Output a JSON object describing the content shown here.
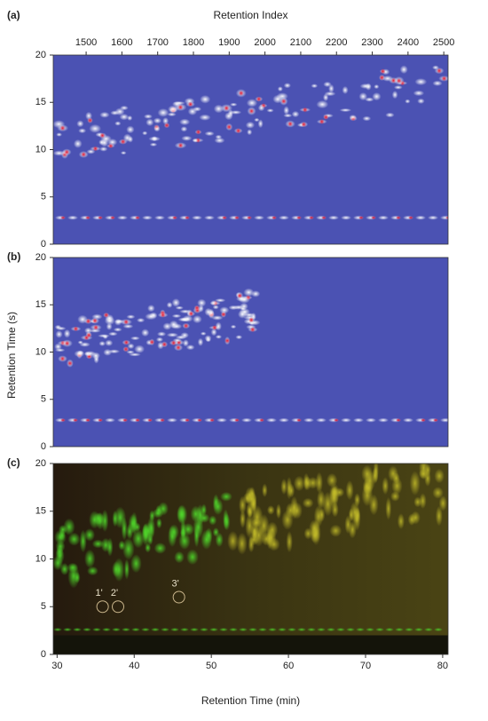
{
  "chart_data": [
    {
      "type": "heatmap",
      "panel_label": "(a)",
      "x_label": "Retention Index",
      "xaxis": "top",
      "xlim": [
        1408,
        2512
      ],
      "xticks": [
        1500,
        1600,
        1700,
        1800,
        1900,
        2000,
        2100,
        2200,
        2300,
        2400,
        2500
      ],
      "ylim": [
        0,
        20
      ],
      "yticks": [
        0,
        5,
        10,
        15,
        20
      ],
      "color": "#4b52b3"
    },
    {
      "type": "heatmap",
      "panel_label": "(b)",
      "y_label": "Retention Time (s)",
      "ylim": [
        0,
        20
      ],
      "yticks": [
        0,
        5,
        10,
        15,
        20
      ],
      "color": "#4b52b3"
    },
    {
      "type": "heatmap",
      "panel_label": "(c)",
      "x_label": "Retention Time (min)",
      "xaxis": "bottom",
      "xlim": [
        29.5,
        80.7
      ],
      "xticks": [
        30,
        40,
        50,
        60,
        70,
        80
      ],
      "ylim": [
        0,
        20
      ],
      "yticks": [
        0,
        5,
        10,
        15,
        20
      ],
      "color": "#2c2a12",
      "annotations": [
        {
          "text": "1'",
          "x": 35.9,
          "y": 5.0
        },
        {
          "text": "2'",
          "x": 37.9,
          "y": 5.0
        },
        {
          "text": "3'",
          "x": 45.8,
          "y": 6.0
        }
      ]
    }
  ]
}
